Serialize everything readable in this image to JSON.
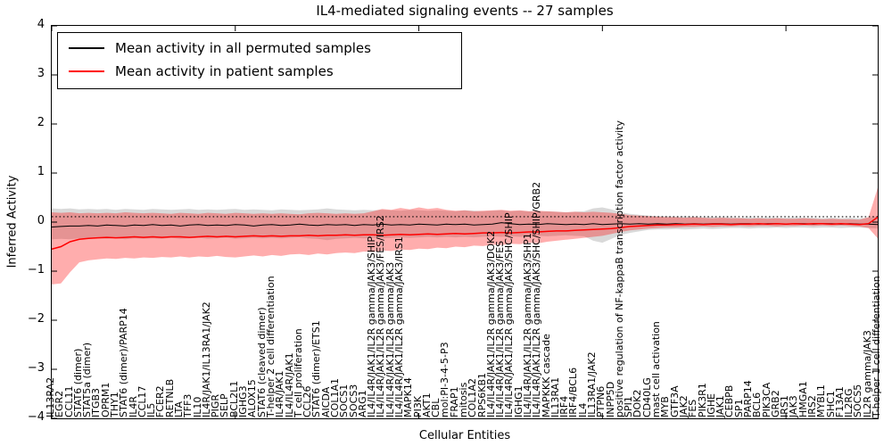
{
  "title": "IL4-mediated signaling events -- 27 samples",
  "legend": {
    "items": [
      {
        "label": "Mean activity in all permuted samples",
        "color": "#000000"
      },
      {
        "label": "Mean activity in patient samples",
        "color": "#ff0000"
      }
    ]
  },
  "axes": {
    "ylabel": "Inferred Activity",
    "xlabel": "Cellular Entities",
    "ytick_labels": [
      "4",
      "3",
      "2",
      "1",
      "0",
      "−1",
      "−2",
      "−3",
      "−4"
    ],
    "ytick_values": [
      4,
      3,
      2,
      1,
      0,
      -1,
      -2,
      -3,
      -4
    ]
  },
  "chart_data": {
    "type": "line",
    "title": "IL4-mediated signaling events -- 27 samples",
    "xlabel": "Cellular Entities",
    "ylabel": "Inferred Activity",
    "ylim": [
      -4,
      4
    ],
    "grid": false,
    "legend_position": "upper left",
    "dotted_baseline": 0.11,
    "xtick_indices": [
      0,
      20,
      40,
      60,
      80
    ],
    "categories": [
      "IL13RA2",
      "EGR2",
      "CCL11",
      "STAT6 (dimer)",
      "STAT5a (dimer)",
      "ITGB3",
      "OPRM1",
      "THY1",
      "STAT6 (dimer)/PARP14",
      "IL4R",
      "CCL17",
      "IL5",
      "FCER2",
      "RETNLB",
      "LTA",
      "TFF3",
      "IL10",
      "IL4R/JAK1/IL13RA1/JAK2",
      "PIGR",
      "SELP",
      "BCL2L1",
      "IGHG3",
      "ALOX15",
      "STAT6 (cleaved dimer)",
      "T-helper 2 cell differentiation",
      "IL4R/JAK1",
      "IL4/IL4R/JAK1",
      "T cell proliferation",
      "CCL26",
      "STAT6 (dimer)/ETS1",
      "AICDA",
      "COL1A1",
      "SOCS1",
      "SOCS3",
      "ARG1",
      "IL4/IL4R/JAK1/IL2R gamma/JAK3/SHIP",
      "IL4/IL4R/JAK1/IL2R gamma/JAK3/FES/IRS2",
      "IL4/IL4R/JAK1/IL2R gamma/JAK3",
      "IL4/IL4R/JAK1/IL2R gamma/JAK3/IRS1",
      "MAPK14",
      "PI3K",
      "AKT1",
      "CBL",
      "mol:PI-3-4-5-P3",
      "FRAP1",
      "mitosis",
      "COL1A2",
      "RPS6KB1",
      "IL4/IL4R/JAK1/IL2R gamma/JAK3/DOK2",
      "IL4/IL4R/JAK1/IL2R gamma/JAK3/FES",
      "IL4/IL4R/JAK1/IL2R gamma/JAK3/SHC/SHIP",
      "IGHG1",
      "IL4/IL4R/JAK1/IL2R gamma/JAK3/SHP1",
      "IL4/IL4R/JAK1/IL2R gamma/JAK3/SHC/SHIP/GRB2",
      "MAPKKK cascade",
      "IL13RA1",
      "IRF4",
      "IRF4/BCL6",
      "IL4",
      "IL13RA1/JAK2",
      "PTPN6",
      "INPP5D",
      "positive regulation of NF-kappaB transcription factor activity",
      "SPI1",
      "DOK2",
      "CD40LG",
      "mast cell activation",
      "MYB",
      "GTF3A",
      "JAK2",
      "FES",
      "PIK3R1",
      "IGHE",
      "JAK1",
      "CEBPB",
      "SP1",
      "PARP14",
      "BCL6",
      "PIK3CA",
      "GRB2",
      "IRS1",
      "JAK3",
      "HMGA1",
      "IRS2",
      "MYBL1",
      "SHC1",
      "F13A1",
      "IL2RG",
      "SOCS5",
      "IL2R gamma/JAK3",
      "T-helper 1 cell differentiation"
    ],
    "series": [
      {
        "name": "Mean activity in all permuted samples",
        "color": "#000000",
        "values": [
          -0.1,
          -0.09,
          -0.08,
          -0.08,
          -0.07,
          -0.08,
          -0.06,
          -0.07,
          -0.08,
          -0.06,
          -0.07,
          -0.05,
          -0.07,
          -0.06,
          -0.08,
          -0.06,
          -0.05,
          -0.07,
          -0.06,
          -0.07,
          -0.05,
          -0.06,
          -0.08,
          -0.06,
          -0.05,
          -0.07,
          -0.06,
          -0.04,
          -0.06,
          -0.07,
          -0.05,
          -0.06,
          -0.05,
          -0.07,
          -0.05,
          -0.06,
          -0.04,
          -0.06,
          -0.05,
          -0.06,
          -0.04,
          -0.05,
          -0.06,
          -0.04,
          -0.05,
          -0.04,
          -0.06,
          -0.05,
          -0.04,
          -0.01,
          -0.03,
          -0.05,
          -0.04,
          -0.05,
          -0.03,
          -0.04,
          -0.05,
          -0.04,
          -0.05,
          -0.03,
          -0.05,
          -0.04,
          -0.03,
          -0.04,
          -0.03,
          -0.04,
          -0.03,
          -0.04,
          -0.03,
          -0.04,
          -0.03,
          -0.04,
          -0.03,
          -0.03,
          -0.04,
          -0.03,
          -0.03,
          -0.04,
          -0.03,
          -0.03,
          -0.04,
          -0.03,
          -0.03,
          -0.04,
          -0.03,
          -0.03,
          -0.04,
          -0.03,
          -0.04,
          -0.04,
          -0.05
        ]
      },
      {
        "name": "Mean activity in patient samples",
        "color": "#ff0000",
        "values": [
          -0.55,
          -0.5,
          -0.4,
          -0.35,
          -0.33,
          -0.32,
          -0.31,
          -0.32,
          -0.31,
          -0.3,
          -0.31,
          -0.3,
          -0.31,
          -0.3,
          -0.3,
          -0.31,
          -0.3,
          -0.29,
          -0.3,
          -0.29,
          -0.3,
          -0.29,
          -0.28,
          -0.29,
          -0.28,
          -0.29,
          -0.28,
          -0.28,
          -0.27,
          -0.28,
          -0.27,
          -0.27,
          -0.26,
          -0.27,
          -0.26,
          -0.26,
          -0.27,
          -0.26,
          -0.25,
          -0.26,
          -0.25,
          -0.24,
          -0.25,
          -0.24,
          -0.23,
          -0.24,
          -0.23,
          -0.22,
          -0.22,
          -0.21,
          -0.22,
          -0.21,
          -0.2,
          -0.2,
          -0.19,
          -0.18,
          -0.18,
          -0.17,
          -0.16,
          -0.15,
          -0.14,
          -0.13,
          -0.11,
          -0.09,
          -0.08,
          -0.07,
          -0.06,
          -0.06,
          -0.05,
          -0.05,
          -0.04,
          -0.05,
          -0.04,
          -0.04,
          -0.05,
          -0.04,
          -0.04,
          -0.03,
          -0.04,
          -0.03,
          -0.04,
          -0.03,
          -0.04,
          -0.03,
          -0.03,
          -0.04,
          -0.03,
          -0.04,
          -0.05,
          -0.03,
          0.1
        ]
      }
    ],
    "bands": [
      {
        "name": "permuted samples range",
        "color": "#808080",
        "opacity": 0.3,
        "hi": [
          0.28,
          0.27,
          0.28,
          0.26,
          0.27,
          0.26,
          0.27,
          0.25,
          0.27,
          0.26,
          0.25,
          0.27,
          0.26,
          0.25,
          0.26,
          0.27,
          0.25,
          0.26,
          0.25,
          0.26,
          0.27,
          0.25,
          0.26,
          0.25,
          0.24,
          0.26,
          0.25,
          0.24,
          0.25,
          0.26,
          0.28,
          0.26,
          0.25,
          0.24,
          0.25,
          0.24,
          0.25,
          0.24,
          0.23,
          0.25,
          0.24,
          0.23,
          0.24,
          0.23,
          0.22,
          0.24,
          0.23,
          0.22,
          0.23,
          0.24,
          0.22,
          0.23,
          0.22,
          0.21,
          0.22,
          0.21,
          0.2,
          0.21,
          0.22,
          0.28,
          0.3,
          0.26,
          0.2,
          0.17,
          0.15,
          0.13,
          0.12,
          0.12,
          0.11,
          0.12,
          0.11,
          0.1,
          0.11,
          0.1,
          0.1,
          0.09,
          0.1,
          0.09,
          0.1,
          0.09,
          0.09,
          0.1,
          0.09,
          0.09,
          0.08,
          0.09,
          0.08,
          0.09,
          0.08,
          0.09,
          0.12
        ],
        "lo": [
          -0.35,
          -0.34,
          -0.35,
          -0.33,
          -0.34,
          -0.33,
          -0.34,
          -0.33,
          -0.35,
          -0.33,
          -0.34,
          -0.33,
          -0.34,
          -0.32,
          -0.34,
          -0.33,
          -0.32,
          -0.34,
          -0.33,
          -0.32,
          -0.34,
          -0.33,
          -0.32,
          -0.33,
          -0.32,
          -0.33,
          -0.32,
          -0.31,
          -0.33,
          -0.34,
          -0.37,
          -0.34,
          -0.33,
          -0.32,
          -0.33,
          -0.32,
          -0.33,
          -0.32,
          -0.31,
          -0.32,
          -0.31,
          -0.3,
          -0.31,
          -0.3,
          -0.31,
          -0.3,
          -0.31,
          -0.3,
          -0.29,
          -0.3,
          -0.29,
          -0.3,
          -0.29,
          -0.28,
          -0.29,
          -0.28,
          -0.27,
          -0.28,
          -0.29,
          -0.38,
          -0.42,
          -0.34,
          -0.26,
          -0.22,
          -0.19,
          -0.16,
          -0.15,
          -0.15,
          -0.14,
          -0.15,
          -0.14,
          -0.13,
          -0.14,
          -0.13,
          -0.12,
          -0.12,
          -0.13,
          -0.12,
          -0.12,
          -0.11,
          -0.12,
          -0.11,
          -0.11,
          -0.12,
          -0.11,
          -0.11,
          -0.12,
          -0.11,
          -0.11,
          -0.12,
          -0.13
        ]
      },
      {
        "name": "patient samples range",
        "color": "#ff0000",
        "opacity": 0.32,
        "hi": [
          0.2,
          0.19,
          0.2,
          0.18,
          0.19,
          0.18,
          0.19,
          0.18,
          0.2,
          0.19,
          0.18,
          0.19,
          0.18,
          0.17,
          0.19,
          0.18,
          0.17,
          0.19,
          0.18,
          0.17,
          0.19,
          0.18,
          0.17,
          0.18,
          0.17,
          0.18,
          0.17,
          0.16,
          0.18,
          0.19,
          0.18,
          0.17,
          0.18,
          0.17,
          0.18,
          0.22,
          0.27,
          0.25,
          0.29,
          0.26,
          0.3,
          0.27,
          0.29,
          0.25,
          0.23,
          0.24,
          0.22,
          0.23,
          0.24,
          0.25,
          0.23,
          0.24,
          0.22,
          0.23,
          0.22,
          0.21,
          0.2,
          0.21,
          0.2,
          0.21,
          0.2,
          0.19,
          0.17,
          0.14,
          0.13,
          0.12,
          0.11,
          0.1,
          0.1,
          0.09,
          0.1,
          0.09,
          0.08,
          0.09,
          0.08,
          0.08,
          0.07,
          0.08,
          0.07,
          0.08,
          0.07,
          0.07,
          0.08,
          0.07,
          0.06,
          0.07,
          0.06,
          0.06,
          0.05,
          0.1,
          0.7
        ],
        "lo": [
          -1.27,
          -1.25,
          -1.02,
          -0.82,
          -0.78,
          -0.76,
          -0.74,
          -0.75,
          -0.73,
          -0.74,
          -0.72,
          -0.73,
          -0.71,
          -0.72,
          -0.7,
          -0.72,
          -0.7,
          -0.71,
          -0.69,
          -0.71,
          -0.72,
          -0.7,
          -0.68,
          -0.7,
          -0.67,
          -0.69,
          -0.66,
          -0.65,
          -0.67,
          -0.64,
          -0.66,
          -0.63,
          -0.62,
          -0.63,
          -0.6,
          -0.61,
          -0.58,
          -0.59,
          -0.56,
          -0.57,
          -0.54,
          -0.55,
          -0.52,
          -0.53,
          -0.5,
          -0.51,
          -0.48,
          -0.49,
          -0.46,
          -0.47,
          -0.44,
          -0.45,
          -0.42,
          -0.43,
          -0.4,
          -0.38,
          -0.36,
          -0.34,
          -0.32,
          -0.3,
          -0.28,
          -0.24,
          -0.2,
          -0.17,
          -0.15,
          -0.13,
          -0.12,
          -0.11,
          -0.11,
          -0.1,
          -0.1,
          -0.09,
          -0.1,
          -0.09,
          -0.09,
          -0.08,
          -0.09,
          -0.08,
          -0.08,
          -0.09,
          -0.08,
          -0.08,
          -0.07,
          -0.08,
          -0.07,
          -0.08,
          -0.07,
          -0.08,
          -0.09,
          -0.12,
          -0.33
        ]
      }
    ]
  }
}
